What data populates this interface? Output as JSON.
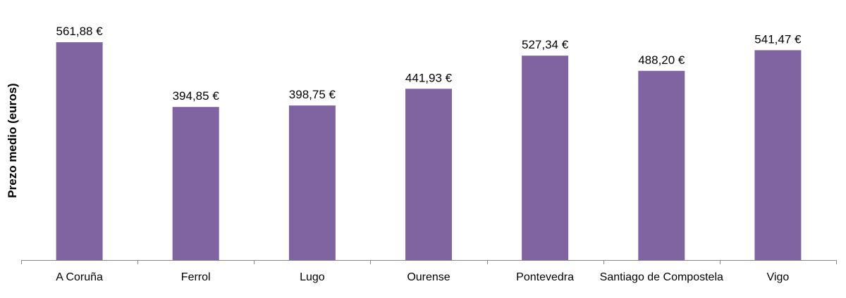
{
  "chart_data": {
    "type": "bar",
    "title": "",
    "xlabel": "",
    "ylabel": "Prezo medio (euros)",
    "ylim": [
      0,
      600
    ],
    "grid": false,
    "legend": "none",
    "categories": [
      "A Coruña",
      "Ferrol",
      "Lugo",
      "Ourense",
      "Pontevedra",
      "Santiago de Compostela",
      "Vigo"
    ],
    "values": [
      561.88,
      394.85,
      398.75,
      441.93,
      527.34,
      488.2,
      541.47
    ],
    "data_labels": [
      "561,88 €",
      "394,85 €",
      "398,75 €",
      "441,93 €",
      "527,34 €",
      "488,20 €",
      "541,47 €"
    ],
    "colors": {
      "bar": "#8064a2",
      "axis": "#868686"
    }
  }
}
